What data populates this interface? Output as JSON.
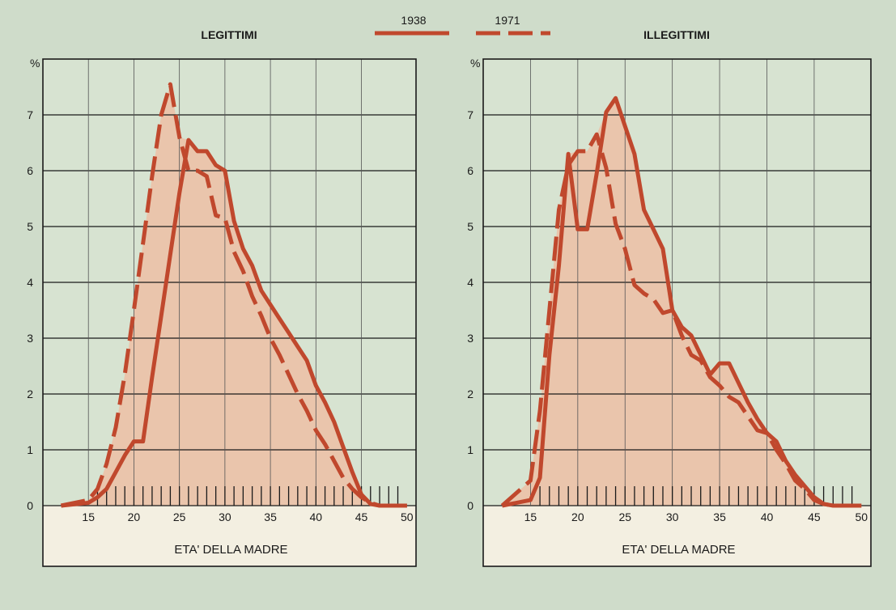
{
  "legend": {
    "entries": [
      "1938",
      "1971"
    ]
  },
  "chart_data": [
    {
      "type": "line",
      "title": "LEGITTIMI",
      "xlabel": "ETA' DELLA MADRE",
      "ylabel": "%",
      "xlim": [
        10,
        51
      ],
      "ylim": [
        0,
        8
      ],
      "xticks": [
        15,
        20,
        25,
        30,
        35,
        40,
        45,
        50
      ],
      "yticks": [
        0,
        1,
        2,
        3,
        4,
        5,
        6,
        7
      ],
      "grid": true,
      "series": [
        {
          "name": "1938",
          "style": "solid",
          "x": [
            12,
            15,
            16,
            17,
            18,
            19,
            20,
            21,
            22,
            23,
            24,
            25,
            26,
            27,
            28,
            29,
            30,
            31,
            32,
            33,
            34,
            35,
            36,
            37,
            38,
            39,
            40,
            41,
            42,
            43,
            44,
            45,
            46,
            47,
            48,
            49,
            50
          ],
          "y": [
            0,
            0.05,
            0.15,
            0.3,
            0.6,
            0.9,
            1.15,
            1.15,
            2.3,
            3.4,
            4.5,
            5.6,
            6.55,
            6.35,
            6.35,
            6.1,
            6.0,
            5.1,
            4.6,
            4.3,
            3.85,
            3.6,
            3.35,
            3.1,
            2.85,
            2.6,
            2.15,
            1.85,
            1.5,
            1.05,
            0.6,
            0.2,
            0.03,
            0,
            0,
            0,
            0
          ]
        },
        {
          "name": "1971",
          "style": "dashed",
          "x": [
            12,
            15,
            16,
            17,
            18,
            19,
            20,
            21,
            22,
            23,
            24,
            25,
            26,
            27,
            28,
            29,
            30,
            31,
            32,
            33,
            34,
            35,
            36,
            37,
            38,
            39,
            40,
            41,
            42,
            43,
            44,
            45,
            46,
            47,
            48,
            49,
            50
          ],
          "y": [
            0,
            0.1,
            0.3,
            0.75,
            1.4,
            2.35,
            3.5,
            4.7,
            5.9,
            7.0,
            7.55,
            6.6,
            6.0,
            6.0,
            5.9,
            5.2,
            5.15,
            4.55,
            4.2,
            3.75,
            3.4,
            3.0,
            2.7,
            2.35,
            2.0,
            1.7,
            1.35,
            1.1,
            0.8,
            0.5,
            0.3,
            0.15,
            0.05,
            0,
            0,
            0,
            0
          ]
        }
      ]
    },
    {
      "type": "line",
      "title": "ILLEGITTIMI",
      "xlabel": "ETA' DELLA MADRE",
      "ylabel": "%",
      "xlim": [
        10,
        51
      ],
      "ylim": [
        0,
        8
      ],
      "xticks": [
        15,
        20,
        25,
        30,
        35,
        40,
        45,
        50
      ],
      "yticks": [
        0,
        1,
        2,
        3,
        4,
        5,
        6,
        7
      ],
      "grid": true,
      "series": [
        {
          "name": "1938",
          "style": "solid",
          "x": [
            12,
            15,
            16,
            17,
            18,
            19,
            20,
            21,
            22,
            23,
            24,
            25,
            26,
            27,
            28,
            29,
            30,
            31,
            32,
            33,
            34,
            35,
            36,
            37,
            38,
            39,
            40,
            41,
            42,
            43,
            44,
            45,
            46,
            47,
            48,
            49,
            50
          ],
          "y": [
            0,
            0.1,
            0.5,
            2.7,
            4.3,
            6.3,
            4.95,
            4.95,
            5.95,
            7.05,
            7.3,
            6.8,
            6.3,
            5.3,
            4.95,
            4.6,
            3.5,
            3.2,
            3.05,
            2.7,
            2.35,
            2.55,
            2.55,
            2.2,
            1.85,
            1.55,
            1.3,
            1.15,
            0.8,
            0.55,
            0.35,
            0.15,
            0.03,
            0,
            0,
            0,
            0
          ]
        },
        {
          "name": "1971",
          "style": "dashed",
          "x": [
            12,
            15,
            16,
            17,
            18,
            19,
            20,
            21,
            22,
            23,
            24,
            25,
            26,
            27,
            28,
            29,
            30,
            31,
            32,
            33,
            34,
            35,
            36,
            37,
            38,
            39,
            40,
            41,
            42,
            43,
            44,
            45,
            46,
            47,
            48,
            49,
            50
          ],
          "y": [
            0,
            0.45,
            1.7,
            3.5,
            5.3,
            6.1,
            6.35,
            6.35,
            6.65,
            6.05,
            5.05,
            4.6,
            3.95,
            3.8,
            3.7,
            3.45,
            3.5,
            3.05,
            2.7,
            2.6,
            2.3,
            2.15,
            1.95,
            1.85,
            1.6,
            1.35,
            1.3,
            1.0,
            0.75,
            0.45,
            0.3,
            0.1,
            0.03,
            0,
            0,
            0,
            0
          ]
        }
      ]
    }
  ]
}
